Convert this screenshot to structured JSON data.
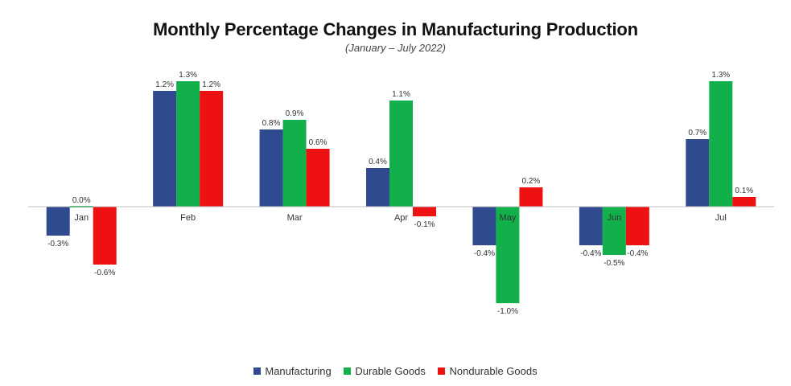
{
  "chart_data": {
    "type": "bar",
    "title": "Monthly Percentage Changes in Manufacturing Production",
    "subtitle": "(January – July 2022)",
    "xlabel": "",
    "ylabel": "",
    "categories": [
      "Jan",
      "Feb",
      "Mar",
      "Apr",
      "May",
      "Jun",
      "Jul"
    ],
    "series": [
      {
        "name": "Manufacturing",
        "color": "#2f4a8f",
        "values": [
          -0.3,
          1.2,
          0.8,
          0.4,
          -0.4,
          -0.4,
          0.7
        ],
        "labels": [
          "-0.3%",
          "1.2%",
          "0.8%",
          "0.4%",
          "-0.4%",
          "-0.4%",
          "0.7%"
        ]
      },
      {
        "name": "Durable Goods",
        "color": "#11b04b",
        "values": [
          0.0,
          1.3,
          0.9,
          1.1,
          -1.0,
          -0.5,
          1.3
        ],
        "labels": [
          "0.0%",
          "1.3%",
          "0.9%",
          "1.1%",
          "-1.0%",
          "-0.5%",
          "1.3%"
        ]
      },
      {
        "name": "Nondurable Goods",
        "color": "#ee1111",
        "values": [
          -0.6,
          1.2,
          0.6,
          -0.1,
          0.2,
          -0.4,
          0.1
        ],
        "labels": [
          "-0.6%",
          "1.2%",
          "0.6%",
          "-0.1%",
          "0.2%",
          "-0.4%",
          "0.1%"
        ]
      }
    ],
    "ylim": [
      -1.2,
      1.4
    ],
    "grid": false,
    "legend_position": "bottom"
  }
}
